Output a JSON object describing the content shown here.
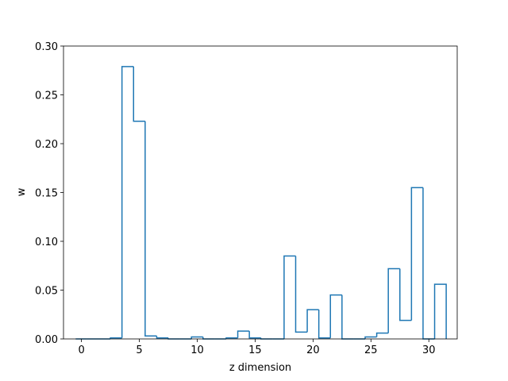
{
  "chart_data": {
    "type": "bar",
    "style": "step-histogram",
    "title": "",
    "xlabel": "z dimension",
    "ylabel": "w",
    "xlim": [
      -1.55,
      32.45
    ],
    "ylim": [
      0.0,
      0.3
    ],
    "grid": false,
    "x_ticks": [
      0,
      5,
      10,
      15,
      20,
      25,
      30
    ],
    "y_ticks": [
      0.0,
      0.05,
      0.1,
      0.15,
      0.2,
      0.25,
      0.3
    ],
    "y_tick_labels": [
      "0.00",
      "0.05",
      "0.10",
      "0.15",
      "0.20",
      "0.25",
      "0.30"
    ],
    "x_tick_labels": [
      "0",
      "5",
      "10",
      "15",
      "20",
      "25",
      "30"
    ],
    "bin_width": 1,
    "categories": [
      0,
      1,
      2,
      3,
      4,
      5,
      6,
      7,
      8,
      9,
      10,
      11,
      12,
      13,
      14,
      15,
      16,
      17,
      18,
      19,
      20,
      21,
      22,
      23,
      24,
      25,
      26,
      27,
      28,
      29,
      30,
      31
    ],
    "values": [
      0.0,
      0.0,
      0.0,
      0.001,
      0.279,
      0.223,
      0.003,
      0.001,
      0.0,
      0.0,
      0.002,
      0.0,
      0.0,
      0.001,
      0.008,
      0.001,
      0.0,
      0.0,
      0.085,
      0.007,
      0.03,
      0.001,
      0.045,
      0.0,
      0.0,
      0.002,
      0.006,
      0.072,
      0.019,
      0.155,
      0.0,
      0.056
    ],
    "color": "#1f77b4"
  }
}
